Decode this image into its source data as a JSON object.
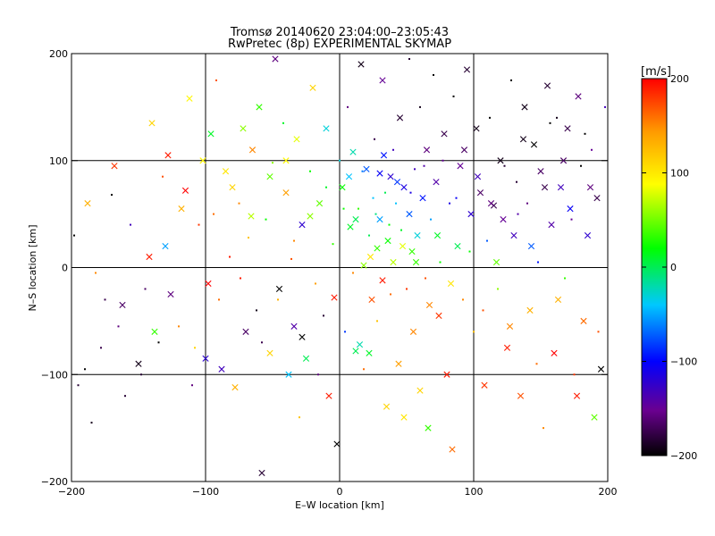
{
  "chart_data": {
    "type": "scatter",
    "title": "Tromsø 20140620 23:04:00–23:05:43",
    "subtitle": "RwPretec (8p) EXPERIMENTAL SKYMAP",
    "xlabel": "E–W location [km]",
    "ylabel": "N–S location [km]",
    "xlim": [
      -200,
      200
    ],
    "ylim": [
      -200,
      200
    ],
    "xticks": [
      -200,
      -100,
      0,
      100,
      200
    ],
    "yticks": [
      -200,
      -100,
      0,
      100,
      200
    ],
    "grid": true,
    "colorbar": {
      "label": "[m/s]",
      "range": [
        -200,
        200
      ],
      "ticks": [
        200,
        100,
        0,
        -100,
        -200
      ],
      "colormap": "rainbow",
      "stops": [
        "#000000",
        "#6a0090",
        "#0000ff",
        "#00c8ff",
        "#00ff00",
        "#ffff00",
        "#ff9a00",
        "#ff0000"
      ]
    },
    "markers": [
      "dot",
      "x"
    ],
    "points": [
      [
        -195,
        -110,
        -180,
        "dot"
      ],
      [
        -190,
        -95,
        -200,
        "dot"
      ],
      [
        -185,
        -145,
        -190,
        "dot"
      ],
      [
        -175,
        -30,
        -170,
        "dot"
      ],
      [
        -170,
        68,
        -200,
        "dot"
      ],
      [
        -165,
        -55,
        -150,
        "dot"
      ],
      [
        -160,
        -120,
        -180,
        "dot"
      ],
      [
        -150,
        -90,
        -190,
        "x"
      ],
      [
        -145,
        -20,
        -160,
        "dot"
      ],
      [
        -140,
        135,
        110,
        "x"
      ],
      [
        -135,
        -70,
        -200,
        "dot"
      ],
      [
        -130,
        20,
        -40,
        "x"
      ],
      [
        -128,
        105,
        190,
        "x"
      ],
      [
        -120,
        -55,
        150,
        "dot"
      ],
      [
        -115,
        72,
        200,
        "x"
      ],
      [
        -112,
        158,
        90,
        "x"
      ],
      [
        -110,
        -110,
        -150,
        "dot"
      ],
      [
        -105,
        40,
        180,
        "dot"
      ],
      [
        -100,
        -85,
        -110,
        "x"
      ],
      [
        -96,
        125,
        20,
        "x"
      ],
      [
        -92,
        175,
        170,
        "dot"
      ],
      [
        -90,
        -30,
        160,
        "dot"
      ],
      [
        -85,
        90,
        100,
        "x"
      ],
      [
        -82,
        10,
        190,
        "dot"
      ],
      [
        -78,
        -112,
        130,
        "x"
      ],
      [
        -75,
        60,
        150,
        "dot"
      ],
      [
        -72,
        130,
        60,
        "x"
      ],
      [
        -70,
        -60,
        -160,
        "x"
      ],
      [
        -68,
        28,
        120,
        "dot"
      ],
      [
        -65,
        110,
        150,
        "x"
      ],
      [
        -62,
        -40,
        -190,
        "dot"
      ],
      [
        -60,
        150,
        40,
        "x"
      ],
      [
        -58,
        -192,
        -180,
        "x"
      ],
      [
        -55,
        45,
        30,
        "dot"
      ],
      [
        -52,
        -80,
        110,
        "x"
      ],
      [
        -50,
        98,
        60,
        "dot"
      ],
      [
        -48,
        195,
        -150,
        "x"
      ],
      [
        -45,
        -20,
        -200,
        "x"
      ],
      [
        -42,
        135,
        20,
        "dot"
      ],
      [
        -40,
        70,
        140,
        "x"
      ],
      [
        -38,
        -100,
        -30,
        "x"
      ],
      [
        -36,
        8,
        170,
        "dot"
      ],
      [
        -34,
        -55,
        -130,
        "x"
      ],
      [
        -32,
        120,
        80,
        "x"
      ],
      [
        -30,
        -140,
        120,
        "dot"
      ],
      [
        -28,
        40,
        -110,
        "x"
      ],
      [
        -25,
        -85,
        10,
        "x"
      ],
      [
        -22,
        90,
        30,
        "dot"
      ],
      [
        -20,
        168,
        110,
        "x"
      ],
      [
        -18,
        -15,
        140,
        "dot"
      ],
      [
        -15,
        60,
        50,
        "x"
      ],
      [
        -12,
        -45,
        -180,
        "dot"
      ],
      [
        -10,
        130,
        -20,
        "x"
      ],
      [
        -8,
        -120,
        190,
        "x"
      ],
      [
        -5,
        22,
        40,
        "dot"
      ],
      [
        -2,
        -165,
        -200,
        "x"
      ],
      [
        0,
        100,
        -20,
        "dot"
      ],
      [
        2,
        75,
        30,
        "x"
      ],
      [
        4,
        -60,
        -70,
        "dot"
      ],
      [
        6,
        150,
        -150,
        "dot"
      ],
      [
        8,
        38,
        20,
        "x"
      ],
      [
        10,
        -5,
        150,
        "dot"
      ],
      [
        10,
        108,
        -10,
        "x"
      ],
      [
        12,
        -78,
        10,
        "x"
      ],
      [
        14,
        55,
        40,
        "dot"
      ],
      [
        15,
        -72,
        -10,
        "x"
      ],
      [
        16,
        190,
        -190,
        "x"
      ],
      [
        18,
        2,
        60,
        "x"
      ],
      [
        18,
        -95,
        160,
        "dot"
      ],
      [
        20,
        92,
        -60,
        "x"
      ],
      [
        22,
        30,
        10,
        "dot"
      ],
      [
        22,
        -80,
        20,
        "x"
      ],
      [
        24,
        -30,
        170,
        "x"
      ],
      [
        25,
        65,
        -30,
        "dot"
      ],
      [
        26,
        120,
        -170,
        "dot"
      ],
      [
        28,
        18,
        40,
        "x"
      ],
      [
        28,
        -50,
        120,
        "dot"
      ],
      [
        30,
        88,
        -90,
        "x"
      ],
      [
        30,
        45,
        -40,
        "x"
      ],
      [
        32,
        -12,
        190,
        "x"
      ],
      [
        32,
        175,
        -140,
        "x"
      ],
      [
        34,
        70,
        10,
        "dot"
      ],
      [
        35,
        -130,
        110,
        "x"
      ],
      [
        36,
        25,
        30,
        "x"
      ],
      [
        38,
        85,
        -110,
        "x"
      ],
      [
        38,
        -25,
        160,
        "dot"
      ],
      [
        40,
        110,
        -120,
        "dot"
      ],
      [
        40,
        5,
        70,
        "x"
      ],
      [
        42,
        60,
        -30,
        "dot"
      ],
      [
        44,
        -90,
        140,
        "x"
      ],
      [
        45,
        140,
        -180,
        "x"
      ],
      [
        46,
        35,
        20,
        "dot"
      ],
      [
        48,
        75,
        -100,
        "x"
      ],
      [
        48,
        -140,
        100,
        "x"
      ],
      [
        50,
        -20,
        180,
        "dot"
      ],
      [
        52,
        50,
        -60,
        "x"
      ],
      [
        52,
        195,
        -180,
        "dot"
      ],
      [
        54,
        15,
        40,
        "x"
      ],
      [
        55,
        -60,
        150,
        "x"
      ],
      [
        56,
        92,
        -120,
        "dot"
      ],
      [
        58,
        30,
        -20,
        "x"
      ],
      [
        60,
        -115,
        110,
        "x"
      ],
      [
        60,
        150,
        -190,
        "dot"
      ],
      [
        62,
        65,
        -80,
        "x"
      ],
      [
        64,
        -10,
        170,
        "dot"
      ],
      [
        65,
        110,
        -150,
        "x"
      ],
      [
        66,
        -150,
        40,
        "x"
      ],
      [
        68,
        45,
        -40,
        "dot"
      ],
      [
        70,
        180,
        -200,
        "dot"
      ],
      [
        72,
        80,
        -130,
        "x"
      ],
      [
        74,
        -45,
        180,
        "x"
      ],
      [
        75,
        5,
        30,
        "dot"
      ],
      [
        78,
        125,
        -170,
        "x"
      ],
      [
        80,
        -100,
        190,
        "x"
      ],
      [
        82,
        60,
        -100,
        "dot"
      ],
      [
        84,
        -170,
        160,
        "x"
      ],
      [
        85,
        160,
        -200,
        "dot"
      ],
      [
        88,
        20,
        10,
        "x"
      ],
      [
        90,
        95,
        -140,
        "x"
      ],
      [
        92,
        -30,
        150,
        "dot"
      ],
      [
        95,
        185,
        -180,
        "x"
      ],
      [
        98,
        50,
        -110,
        "x"
      ],
      [
        100,
        -60,
        120,
        "dot"
      ],
      [
        102,
        130,
        -190,
        "x"
      ],
      [
        105,
        70,
        -160,
        "x"
      ],
      [
        108,
        -110,
        180,
        "x"
      ],
      [
        110,
        25,
        -60,
        "dot"
      ],
      [
        112,
        140,
        -200,
        "dot"
      ],
      [
        115,
        58,
        -170,
        "x"
      ],
      [
        118,
        -20,
        60,
        "dot"
      ],
      [
        120,
        100,
        -190,
        "x"
      ],
      [
        122,
        45,
        -140,
        "x"
      ],
      [
        125,
        -75,
        190,
        "x"
      ],
      [
        128,
        175,
        -200,
        "dot"
      ],
      [
        130,
        30,
        -120,
        "x"
      ],
      [
        132,
        80,
        -180,
        "dot"
      ],
      [
        135,
        -120,
        170,
        "x"
      ],
      [
        138,
        150,
        -190,
        "x"
      ],
      [
        140,
        60,
        -150,
        "dot"
      ],
      [
        142,
        -40,
        130,
        "x"
      ],
      [
        145,
        115,
        -200,
        "x"
      ],
      [
        148,
        5,
        -80,
        "dot"
      ],
      [
        150,
        90,
        -160,
        "x"
      ],
      [
        152,
        -150,
        150,
        "dot"
      ],
      [
        155,
        170,
        -180,
        "x"
      ],
      [
        158,
        40,
        -130,
        "x"
      ],
      [
        160,
        -80,
        200,
        "x"
      ],
      [
        162,
        140,
        -190,
        "dot"
      ],
      [
        165,
        75,
        -120,
        "x"
      ],
      [
        168,
        -10,
        40,
        "dot"
      ],
      [
        170,
        130,
        -170,
        "x"
      ],
      [
        172,
        55,
        -90,
        "x"
      ],
      [
        175,
        -100,
        180,
        "dot"
      ],
      [
        178,
        160,
        -150,
        "x"
      ],
      [
        180,
        95,
        -200,
        "dot"
      ],
      [
        182,
        -50,
        160,
        "x"
      ],
      [
        185,
        30,
        -110,
        "x"
      ],
      [
        188,
        110,
        -140,
        "dot"
      ],
      [
        190,
        -140,
        50,
        "x"
      ],
      [
        192,
        65,
        -170,
        "x"
      ],
      [
        195,
        -95,
        -200,
        "x"
      ],
      [
        198,
        150,
        -120,
        "dot"
      ],
      [
        -198,
        30,
        -200,
        "dot"
      ],
      [
        -188,
        60,
        130,
        "x"
      ],
      [
        -182,
        -5,
        150,
        "dot"
      ],
      [
        -178,
        -75,
        -170,
        "dot"
      ],
      [
        -168,
        95,
        180,
        "x"
      ],
      [
        -162,
        -35,
        -160,
        "x"
      ],
      [
        -156,
        40,
        -120,
        "dot"
      ],
      [
        -148,
        -100,
        -180,
        "dot"
      ],
      [
        -142,
        10,
        190,
        "x"
      ],
      [
        -138,
        -60,
        40,
        "x"
      ],
      [
        -132,
        85,
        170,
        "dot"
      ],
      [
        -126,
        -25,
        -150,
        "x"
      ],
      [
        -118,
        55,
        130,
        "x"
      ],
      [
        -108,
        -75,
        110,
        "dot"
      ],
      [
        -102,
        100,
        90,
        "x"
      ],
      [
        -98,
        -15,
        200,
        "x"
      ],
      [
        -94,
        50,
        160,
        "dot"
      ],
      [
        -88,
        -95,
        -120,
        "x"
      ],
      [
        -80,
        75,
        110,
        "x"
      ],
      [
        -74,
        -10,
        190,
        "dot"
      ],
      [
        -66,
        48,
        70,
        "x"
      ],
      [
        -58,
        -70,
        -170,
        "dot"
      ],
      [
        -52,
        85,
        50,
        "x"
      ],
      [
        -46,
        -30,
        130,
        "dot"
      ],
      [
        -40,
        100,
        90,
        "x"
      ],
      [
        -34,
        25,
        150,
        "dot"
      ],
      [
        -28,
        -65,
        -200,
        "x"
      ],
      [
        -22,
        48,
        60,
        "x"
      ],
      [
        -16,
        -100,
        -150,
        "dot"
      ],
      [
        -10,
        75,
        20,
        "dot"
      ],
      [
        -4,
        -28,
        190,
        "x"
      ],
      [
        3,
        55,
        30,
        "dot"
      ],
      [
        7,
        85,
        -30,
        "x"
      ],
      [
        12,
        45,
        10,
        "x"
      ],
      [
        17,
        90,
        -50,
        "dot"
      ],
      [
        23,
        10,
        100,
        "x"
      ],
      [
        27,
        50,
        0,
        "dot"
      ],
      [
        33,
        105,
        -80,
        "x"
      ],
      [
        37,
        40,
        30,
        "dot"
      ],
      [
        43,
        80,
        -70,
        "x"
      ],
      [
        47,
        20,
        80,
        "x"
      ],
      [
        53,
        70,
        -100,
        "dot"
      ],
      [
        57,
        5,
        40,
        "x"
      ],
      [
        63,
        95,
        -130,
        "dot"
      ],
      [
        67,
        -35,
        150,
        "x"
      ],
      [
        73,
        30,
        20,
        "x"
      ],
      [
        77,
        100,
        -140,
        "dot"
      ],
      [
        83,
        -15,
        100,
        "x"
      ],
      [
        87,
        65,
        -90,
        "dot"
      ],
      [
        93,
        110,
        -160,
        "x"
      ],
      [
        97,
        15,
        30,
        "dot"
      ],
      [
        103,
        85,
        -120,
        "x"
      ],
      [
        107,
        -40,
        170,
        "dot"
      ],
      [
        113,
        60,
        -150,
        "x"
      ],
      [
        117,
        5,
        50,
        "x"
      ],
      [
        123,
        95,
        -180,
        "dot"
      ],
      [
        127,
        -55,
        150,
        "x"
      ],
      [
        133,
        50,
        -130,
        "dot"
      ],
      [
        137,
        120,
        -190,
        "x"
      ],
      [
        143,
        20,
        -60,
        "x"
      ],
      [
        147,
        -90,
        160,
        "dot"
      ],
      [
        153,
        75,
        -170,
        "x"
      ],
      [
        157,
        135,
        -200,
        "dot"
      ],
      [
        163,
        -30,
        130,
        "x"
      ],
      [
        167,
        100,
        -160,
        "x"
      ],
      [
        173,
        45,
        -140,
        "dot"
      ],
      [
        177,
        -120,
        190,
        "x"
      ],
      [
        183,
        125,
        -200,
        "dot"
      ],
      [
        187,
        75,
        -150,
        "x"
      ],
      [
        193,
        -60,
        170,
        "dot"
      ]
    ]
  }
}
